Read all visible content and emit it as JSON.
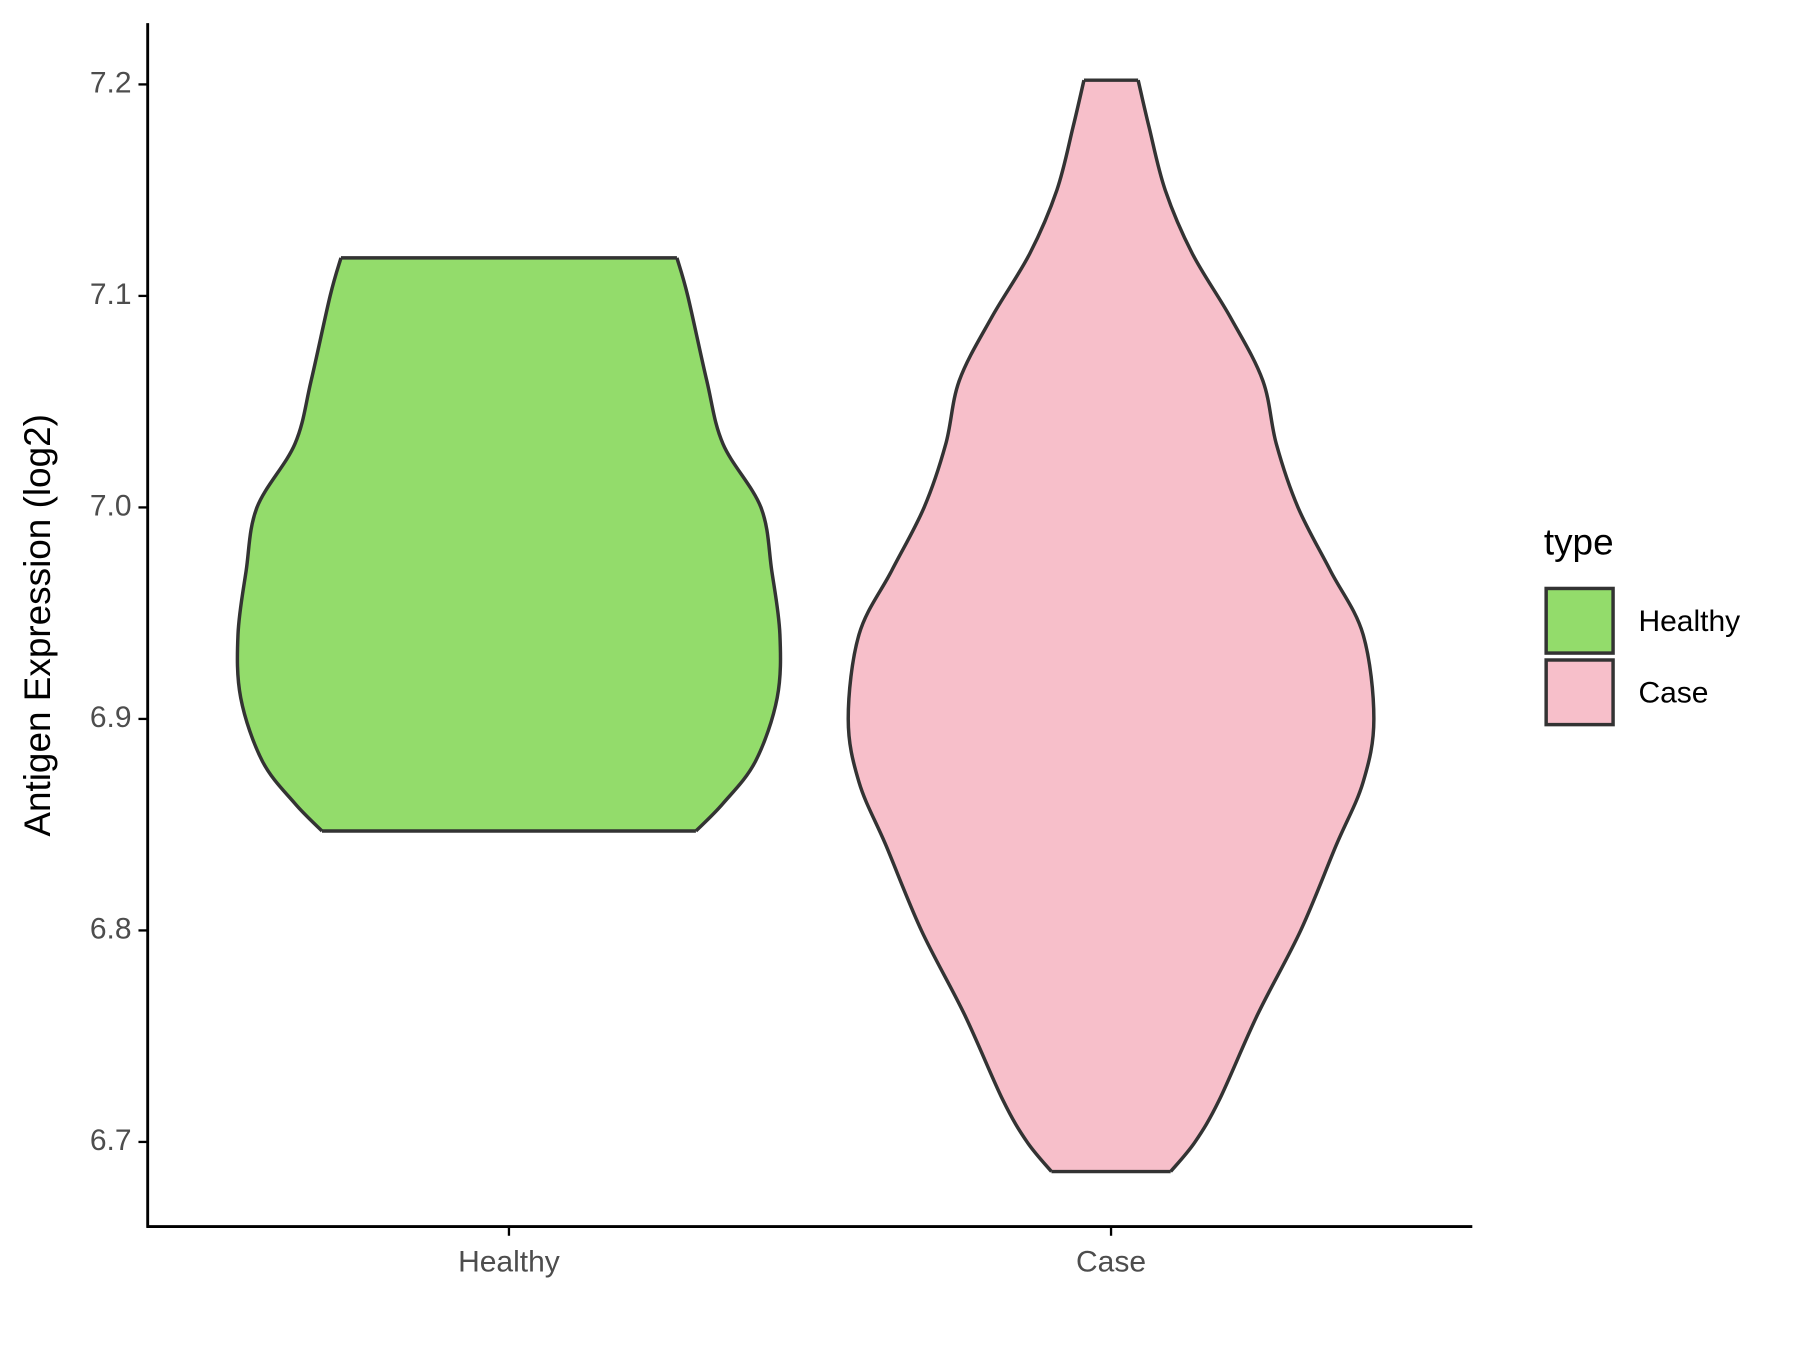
{
  "chart_data": {
    "type": "violin",
    "y_label": "Antigen Expression (log2)",
    "legend_title": "type",
    "categories": [
      "Healthy",
      "Case"
    ],
    "series": [
      {
        "name": "Healthy",
        "color": "#93dc6b",
        "y": [
          7.118,
          7.1,
          7.06,
          7.03,
          7.0,
          6.97,
          6.94,
          6.91,
          6.88,
          6.86,
          6.847
        ],
        "density": [
          0.62,
          0.66,
          0.73,
          0.79,
          0.93,
          0.97,
          1.0,
          0.99,
          0.91,
          0.79,
          0.69
        ]
      },
      {
        "name": "Case",
        "color": "#f7bfca",
        "y": [
          7.202,
          7.18,
          7.15,
          7.12,
          7.09,
          7.06,
          7.03,
          7.0,
          6.97,
          6.94,
          6.9,
          6.87,
          6.84,
          6.8,
          6.76,
          6.72,
          6.7,
          6.686
        ],
        "density": [
          0.1,
          0.14,
          0.2,
          0.3,
          0.44,
          0.56,
          0.61,
          0.69,
          0.81,
          0.93,
          0.97,
          0.93,
          0.83,
          0.7,
          0.54,
          0.4,
          0.31,
          0.22
        ]
      }
    ],
    "ylim": [
      6.66,
      7.229
    ],
    "yticks": [
      6.7,
      6.8,
      6.9,
      {
        "value": 7,
        "label": "7.0"
      },
      7.1,
      7.2
    ]
  }
}
